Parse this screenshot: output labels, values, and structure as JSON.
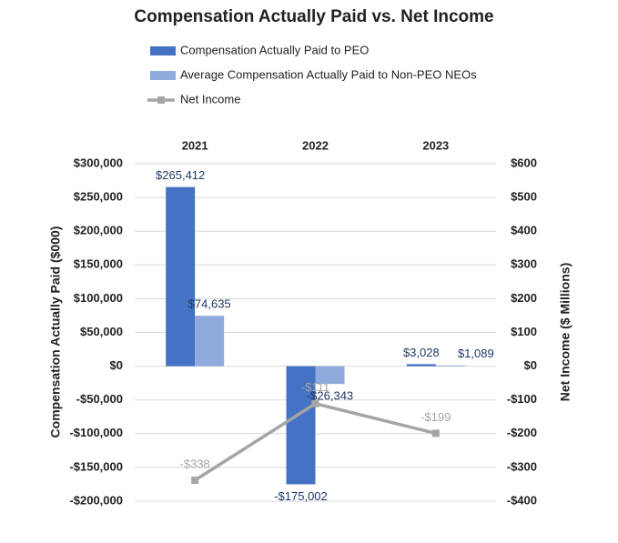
{
  "chart_data": {
    "type": "bar",
    "title": "Compensation Actually Paid vs. Net Income",
    "categories": [
      "2021",
      "2022",
      "2023"
    ],
    "series": [
      {
        "name": "Compensation Actually Paid to PEO",
        "type": "bar",
        "color": "#4472c4",
        "values": [
          265412,
          -175002,
          3028
        ],
        "value_labels": [
          "$265,412",
          "-$175,002",
          "$3,028"
        ]
      },
      {
        "name": "Average Compensation Actually Paid to Non-PEO NEOs",
        "type": "bar",
        "color": "#8faadc",
        "values": [
          74635,
          -26343,
          1089
        ],
        "value_labels": [
          "$74,635",
          "-$26,343",
          "$1,089"
        ]
      },
      {
        "name": "Net Income",
        "type": "line",
        "axis": "y2",
        "color": "#a5a5a5",
        "values": [
          -338,
          -111,
          -199
        ],
        "value_labels": [
          "-$338",
          "-$111",
          "-$199"
        ]
      }
    ],
    "y_label": "Compensation Actually Paid ($000)",
    "y2_label": "Net Income ($ Millions)",
    "ylim": [
      -200000,
      300000
    ],
    "yticks": [
      {
        "value": -200000,
        "label": "-$200,000"
      },
      {
        "value": -150000,
        "label": "-$150,000"
      },
      {
        "value": -100000,
        "label": "-$100,000"
      },
      {
        "value": -50000,
        "label": "-$50,000"
      },
      {
        "value": 0,
        "label": "$0"
      },
      {
        "value": 50000,
        "label": "$50,000"
      },
      {
        "value": 100000,
        "label": "$100,000"
      },
      {
        "value": 150000,
        "label": "$150,000"
      },
      {
        "value": 200000,
        "label": "$200,000"
      },
      {
        "value": 250000,
        "label": "$250,000"
      },
      {
        "value": 300000,
        "label": "$300,000"
      }
    ],
    "y2lim": [
      -400,
      600
    ],
    "y2ticks": [
      {
        "value": -400,
        "label": "-$400"
      },
      {
        "value": -300,
        "label": "-$300"
      },
      {
        "value": -200,
        "label": "-$200"
      },
      {
        "value": -100,
        "label": "-$100"
      },
      {
        "value": 0,
        "label": "$0"
      },
      {
        "value": 100,
        "label": "$100"
      },
      {
        "value": 200,
        "label": "$200"
      },
      {
        "value": 300,
        "label": "$300"
      },
      {
        "value": 400,
        "label": "$400"
      },
      {
        "value": 500,
        "label": "$500"
      },
      {
        "value": 600,
        "label": "$600"
      }
    ],
    "grid": true
  }
}
